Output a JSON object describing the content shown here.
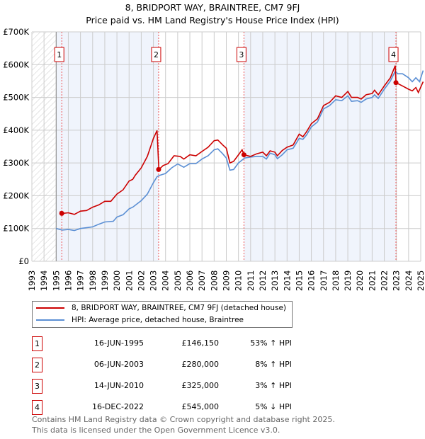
{
  "chart_data": {
    "type": "line",
    "title": "8, BRIDPORT WAY, BRAINTREE, CM7 9FJ",
    "subtitle": "Price paid vs. HM Land Registry's House Price Index (HPI)",
    "xlim": [
      1993,
      2025
    ],
    "ylim": [
      0,
      700000
    ],
    "x_ticks": [
      "1993",
      "1994",
      "1995",
      "1996",
      "1997",
      "1998",
      "1999",
      "2000",
      "2001",
      "2002",
      "2003",
      "2004",
      "2005",
      "2006",
      "2007",
      "2008",
      "2009",
      "2010",
      "2011",
      "2012",
      "2013",
      "2014",
      "2015",
      "2016",
      "2017",
      "2018",
      "2019",
      "2020",
      "2021",
      "2022",
      "2023",
      "2024",
      "2025"
    ],
    "y_ticks": [
      {
        "v": 0,
        "label": "£0"
      },
      {
        "v": 100000,
        "label": "£100K"
      },
      {
        "v": 200000,
        "label": "£200K"
      },
      {
        "v": 300000,
        "label": "£300K"
      },
      {
        "v": 400000,
        "label": "£400K"
      },
      {
        "v": 500000,
        "label": "£500K"
      },
      {
        "v": 600000,
        "label": "£600K"
      },
      {
        "v": 700000,
        "label": "£700K"
      }
    ],
    "grid": true,
    "series": [
      {
        "name": "8, BRIDPORT WAY, BRAINTREE, CM7 9FJ (detached house)",
        "color": "#cc0000",
        "x": [
          1995.3,
          1995.5,
          1996,
          1996.5,
          1997,
          1997.5,
          1998,
          1998.5,
          1999,
          1999.5,
          2000,
          2000.5,
          2001,
          2001.3,
          2001.5,
          2002,
          2002.5,
          2003,
          2003.3,
          2003.45,
          2003.8,
          2004.2,
          2004.7,
          2005.2,
          2005.5,
          2006,
          2006.5,
          2007,
          2007.5,
          2008,
          2008.3,
          2008.7,
          2009,
          2009.3,
          2009.6,
          2010,
          2010.3,
          2010.45,
          2011,
          2011.5,
          2012,
          2012.3,
          2012.6,
          2013,
          2013.2,
          2013.6,
          2014,
          2014.5,
          2015,
          2015.3,
          2015.6,
          2016,
          2016.5,
          2017,
          2017.5,
          2018,
          2018.5,
          2019,
          2019.3,
          2019.8,
          2020.1,
          2020.5,
          2021,
          2021.2,
          2021.5,
          2022,
          2022.5,
          2022.9,
          2022.96,
          2023.5,
          2024,
          2024.3,
          2024.6,
          2024.8,
          2025.2
        ],
        "y": [
          152,
          146,
          148,
          143,
          153,
          155,
          165,
          172,
          183,
          183,
          205,
          218,
          245,
          250,
          262,
          285,
          320,
          375,
          399,
          280,
          292,
          298,
          322,
          320,
          312,
          325,
          322,
          335,
          348,
          368,
          370,
          355,
          345,
          300,
          305,
          325,
          340,
          325,
          320,
          328,
          333,
          322,
          337,
          333,
          322,
          338,
          348,
          355,
          388,
          380,
          395,
          420,
          435,
          475,
          485,
          505,
          500,
          518,
          500,
          500,
          495,
          508,
          512,
          522,
          508,
          535,
          560,
          597,
          545,
          535,
          525,
          520,
          530,
          515,
          548
        ]
      },
      {
        "name": "HPI: Average price, detached house, Braintree",
        "color": "#5b8fd4",
        "x": [
          1995,
          1995.5,
          1996,
          1996.5,
          1997,
          1998,
          1998.5,
          1999,
          1999.7,
          2000,
          2000.5,
          2001,
          2001.3,
          2002,
          2002.5,
          2003,
          2003.3,
          2003.5,
          2004,
          2004.5,
          2005,
          2005.5,
          2006,
          2006.5,
          2007,
          2007.5,
          2008,
          2008.3,
          2008.7,
          2009,
          2009.3,
          2009.6,
          2010,
          2010.5,
          2011,
          2011.5,
          2012,
          2012.3,
          2012.6,
          2013,
          2013.2,
          2013.6,
          2014,
          2014.5,
          2015,
          2015.3,
          2015.6,
          2016,
          2016.5,
          2017,
          2017.5,
          2018,
          2018.5,
          2019,
          2019.3,
          2019.8,
          2020.1,
          2020.5,
          2021,
          2021.2,
          2021.5,
          2022,
          2022.5,
          2022.9,
          2023.1,
          2023.5,
          2024,
          2024.3,
          2024.6,
          2024.9,
          2025.2
        ],
        "y": [
          100,
          95,
          97,
          94,
          100,
          105,
          113,
          120,
          122,
          135,
          142,
          160,
          165,
          185,
          205,
          240,
          258,
          262,
          268,
          285,
          297,
          287,
          298,
          298,
          312,
          322,
          340,
          343,
          328,
          315,
          278,
          280,
          300,
          315,
          318,
          320,
          320,
          312,
          330,
          325,
          313,
          325,
          340,
          345,
          375,
          372,
          385,
          410,
          425,
          465,
          475,
          493,
          490,
          505,
          488,
          490,
          485,
          495,
          500,
          508,
          497,
          525,
          550,
          580,
          572,
          572,
          560,
          548,
          560,
          548,
          582
        ]
      }
    ],
    "y_units": "thousands GBP",
    "sales": [
      {
        "n": "1",
        "x": 1995.46,
        "price": 146150
      },
      {
        "n": "2",
        "x": 2003.43,
        "price": 280000
      },
      {
        "n": "3",
        "x": 2010.45,
        "price": 325000
      },
      {
        "n": "4",
        "x": 2022.96,
        "price": 545000
      }
    ]
  },
  "title_line1": "8, BRIDPORT WAY, BRAINTREE, CM7 9FJ",
  "title_line2": "Price paid vs. HM Land Registry's House Price Index (HPI)",
  "legend": {
    "red": "8, BRIDPORT WAY, BRAINTREE, CM7 9FJ (detached house)",
    "blue": "HPI: Average price, detached house, Braintree"
  },
  "table": [
    {
      "n": "1",
      "date": "16-JUN-1995",
      "price": "£146,150",
      "hpi": "53% ↑ HPI"
    },
    {
      "n": "2",
      "date": "06-JUN-2003",
      "price": "£280,000",
      "hpi": "8% ↑ HPI"
    },
    {
      "n": "3",
      "date": "14-JUN-2010",
      "price": "£325,000",
      "hpi": "3% ↑ HPI"
    },
    {
      "n": "4",
      "date": "16-DEC-2022",
      "price": "£545,000",
      "hpi": "5% ↓ HPI"
    }
  ],
  "footer": {
    "line1": "Contains HM Land Registry data © Crown copyright and database right 2025.",
    "line2": "This data is licensed under the Open Government Licence v3.0."
  }
}
